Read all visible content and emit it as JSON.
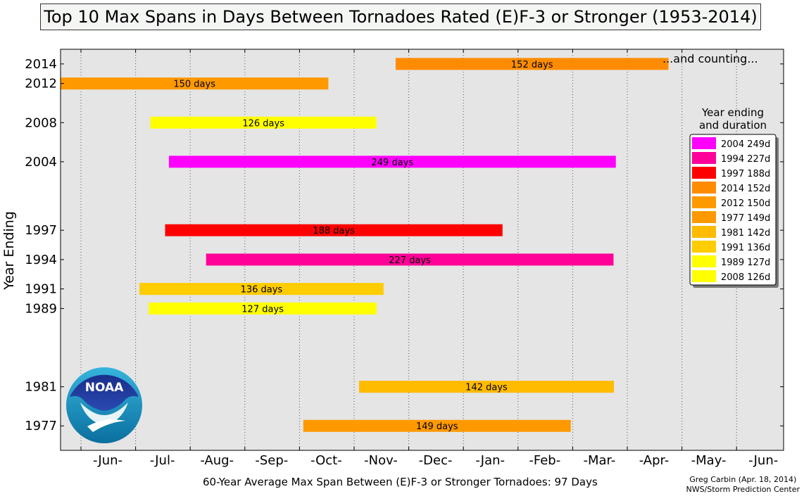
{
  "title": "Top 10 Max Spans in Days Between Tornadoes Rated (E)F-3 or Stronger (1953-2014)",
  "xlabel": "60-Year Average Max Span Between (E)F-3 or Stronger Tornadoes: 97 Days",
  "ylabel": "Year Ending",
  "annotation": "...and counting...",
  "credit": {
    "line1": "Greg Carbin (Apr. 18, 2014)",
    "line2": "NWS/Storm Prediction Center"
  },
  "logo_text": "NOAA",
  "colors": {
    "plot_bg": "#e5e5e5",
    "grid": "#555555"
  },
  "chart_data": {
    "type": "bar",
    "orientation": "horizontal",
    "x_tick_labels": [
      "-Jun-",
      "-Jul-",
      "-Aug-",
      "-Sep-",
      "-Oct-",
      "-Nov-",
      "-Dec-",
      "-Jan-",
      "-Feb-",
      "-Mar-",
      "-Apr-",
      "-May-",
      "-Jun-"
    ],
    "y_ticks": [
      2014,
      2012,
      2008,
      2004,
      1997,
      1994,
      1991,
      1989,
      1981,
      1977
    ],
    "ylim": [
      1974.5,
      2015.5
    ],
    "grid": "vertical dotted",
    "bars": [
      {
        "year": 2014,
        "start_month": 5.76,
        "days": 152,
        "label": "152 days",
        "color": "#ff8c00"
      },
      {
        "year": 2012,
        "start_month": -0.4,
        "days": 150,
        "label": "150 days",
        "color": "#ff9900"
      },
      {
        "year": 2008,
        "start_month": 1.27,
        "days": 126,
        "label": "126 days",
        "color": "#ffff00"
      },
      {
        "year": 2004,
        "start_month": 1.61,
        "days": 249,
        "label": "249 days",
        "color": "#ff00ff"
      },
      {
        "year": 1997,
        "start_month": 1.54,
        "days": 188,
        "label": "188 days",
        "color": "#ff0000"
      },
      {
        "year": 1994,
        "start_month": 2.29,
        "days": 227,
        "label": "227 days",
        "color": "#ff0099"
      },
      {
        "year": 1991,
        "start_month": 1.07,
        "days": 136,
        "label": "136 days",
        "color": "#ffcc00"
      },
      {
        "year": 1989,
        "start_month": 1.24,
        "days": 127,
        "label": "127 days",
        "color": "#ffff00"
      },
      {
        "year": 1981,
        "start_month": 5.09,
        "days": 142,
        "label": "142 days",
        "color": "#ffbb00"
      },
      {
        "year": 1977,
        "start_month": 4.07,
        "days": 149,
        "label": "149 days",
        "color": "#ff9900"
      }
    ],
    "legend": {
      "title_line1": "Year ending",
      "title_line2": "and duration",
      "position": "right",
      "items": [
        {
          "label": "2004 249d",
          "color": "#ff00ff"
        },
        {
          "label": "1994 227d",
          "color": "#ff0099"
        },
        {
          "label": "1997 188d",
          "color": "#ff0000"
        },
        {
          "label": "2014 152d",
          "color": "#ff8c00"
        },
        {
          "label": "2012 150d",
          "color": "#ff9900"
        },
        {
          "label": "1977 149d",
          "color": "#ff9900"
        },
        {
          "label": "1981 142d",
          "color": "#ffbb00"
        },
        {
          "label": "1991 136d",
          "color": "#ffcc00"
        },
        {
          "label": "1989 127d",
          "color": "#ffff00"
        },
        {
          "label": "2008 126d",
          "color": "#ffff00"
        }
      ]
    }
  }
}
